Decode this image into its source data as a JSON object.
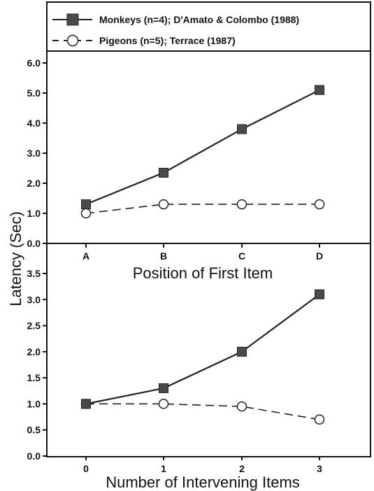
{
  "ylabel": "Latency (Sec)",
  "legend": [
    {
      "label": "Monkeys (n=4); D'Amato & Colombo (1988)",
      "marker": "filled-square",
      "line": "solid"
    },
    {
      "label": "Pigeons (n=5); Terrace (1987)",
      "marker": "open-circle",
      "line": "dashed"
    }
  ],
  "colors": {
    "line": "#222222",
    "square_fill": "#4a4a4a",
    "circle_fill": "#ffffff"
  },
  "chart_data": [
    {
      "type": "line",
      "title": "",
      "xlabel": "Position of First Item",
      "ylabel": "Latency (Sec)",
      "categories": [
        "A",
        "B",
        "C",
        "D"
      ],
      "ylim": [
        0,
        6
      ],
      "yticks": [
        "0.0",
        "1.0",
        "2.0",
        "3.0",
        "4.0",
        "5.0",
        "6.0"
      ],
      "grid": false,
      "legend_position": "top",
      "series": [
        {
          "name": "Monkeys (n=4); D'Amato & Colombo (1988)",
          "values": [
            1.3,
            2.35,
            3.8,
            5.1
          ]
        },
        {
          "name": "Pigeons (n=5); Terrace (1987)",
          "values": [
            1.0,
            1.3,
            1.3,
            1.3
          ]
        }
      ]
    },
    {
      "type": "line",
      "title": "",
      "xlabel": "Number of Intervening Items",
      "ylabel": "Latency (Sec)",
      "categories": [
        "0",
        "1",
        "2",
        "3"
      ],
      "ylim": [
        0,
        3.5
      ],
      "yticks": [
        "0.0",
        "0.5",
        "1.0",
        "1.5",
        "2.0",
        "2.5",
        "3.0",
        "3.5"
      ],
      "grid": false,
      "series": [
        {
          "name": "Monkeys (n=4); D'Amato & Colombo (1988)",
          "values": [
            1.0,
            1.3,
            2.0,
            3.1
          ]
        },
        {
          "name": "Pigeons (n=5); Terrace (1987)",
          "values": [
            1.0,
            1.0,
            0.95,
            0.7
          ]
        }
      ]
    }
  ]
}
